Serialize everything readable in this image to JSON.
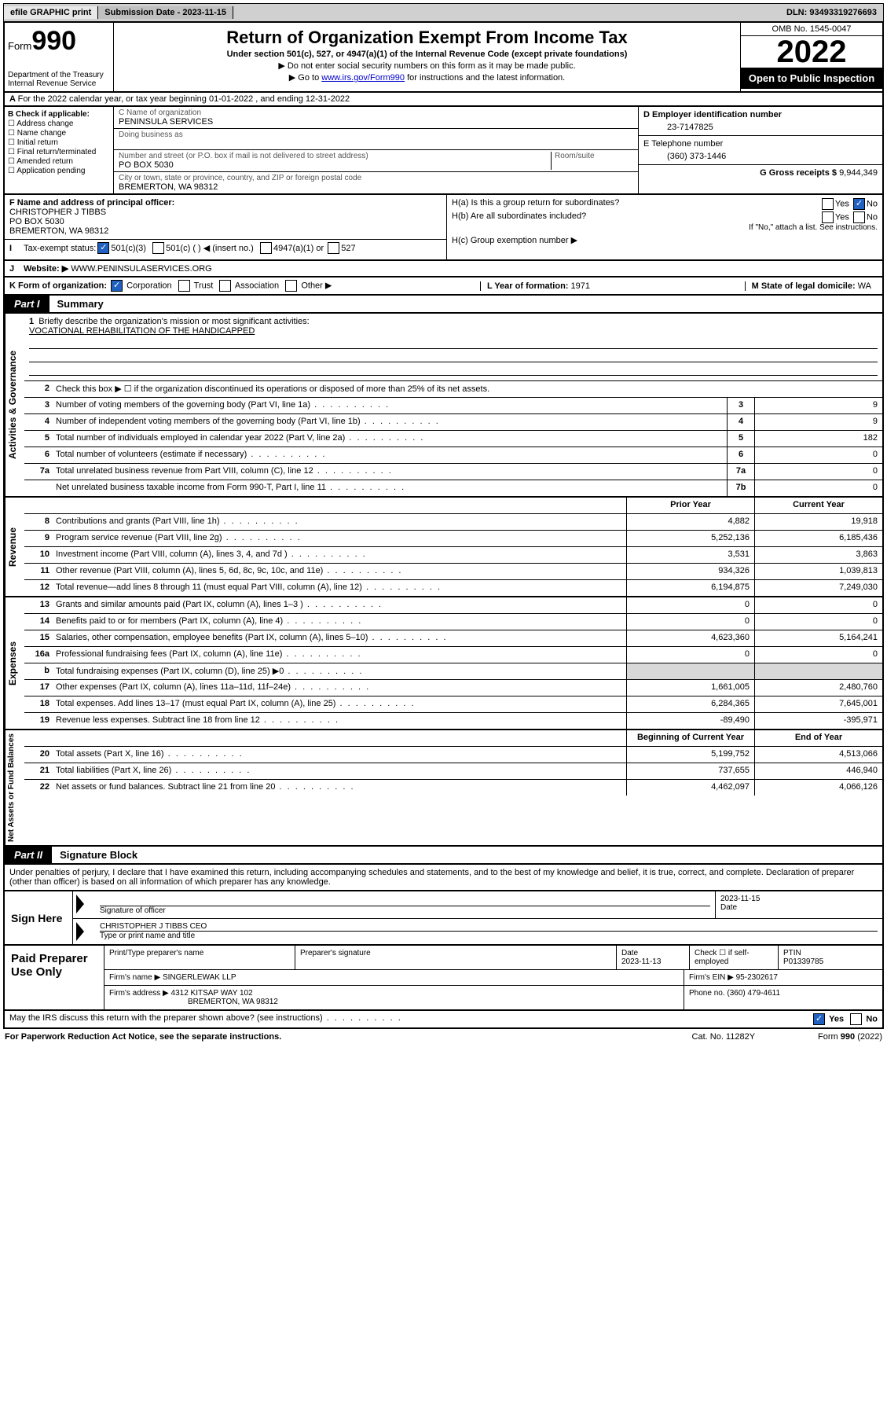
{
  "topbar": {
    "efile": "efile GRAPHIC print",
    "submission_label": "Submission Date - ",
    "submission_date": "2023-11-15",
    "dln_label": "DLN: ",
    "dln": "93493319276693"
  },
  "header": {
    "form_word": "Form",
    "form_num": "990",
    "dept": "Department of the Treasury",
    "irs": "Internal Revenue Service",
    "title": "Return of Organization Exempt From Income Tax",
    "sub": "Under section 501(c), 527, or 4947(a)(1) of the Internal Revenue Code (except private foundations)",
    "note1": "▶ Do not enter social security numbers on this form as it may be made public.",
    "note2_pre": "▶ Go to ",
    "note2_link": "www.irs.gov/Form990",
    "note2_post": " for instructions and the latest information.",
    "omb": "OMB No. 1545-0047",
    "year": "2022",
    "inspection": "Open to Public Inspection"
  },
  "line_a": "For the 2022 calendar year, or tax year beginning 01-01-2022     , and ending 12-31-2022",
  "col_b": {
    "header": "B Check if applicable:",
    "items": [
      "Address change",
      "Name change",
      "Initial return",
      "Final return/terminated",
      "Amended return",
      "Application pending"
    ]
  },
  "org": {
    "name_label": "C Name of organization",
    "name": "PENINSULA SERVICES",
    "dba_label": "Doing business as",
    "addr_label": "Number and street (or P.O. box if mail is not delivered to street address)",
    "room_label": "Room/suite",
    "addr": "PO BOX 5030",
    "city_label": "City or town, state or province, country, and ZIP or foreign postal code",
    "city": "BREMERTON, WA  98312"
  },
  "right_block": {
    "ein_label": "D Employer identification number",
    "ein": "23-7147825",
    "phone_label": "E Telephone number",
    "phone": "(360) 373-1446",
    "gross_label": "G Gross receipts $ ",
    "gross": "9,944,349"
  },
  "officer": {
    "label": "F  Name and address of principal officer:",
    "name": "CHRISTOPHER J TIBBS",
    "addr1": "PO BOX 5030",
    "addr2": "BREMERTON, WA  98312"
  },
  "h_block": {
    "ha": "H(a)  Is this a group return for subordinates?",
    "hb": "H(b)  Are all subordinates included?",
    "hb_note": "If \"No,\" attach a list. See instructions.",
    "hc": "H(c)  Group exemption number ▶",
    "yes": "Yes",
    "no": "No"
  },
  "tax_status": {
    "label": "Tax-exempt status:",
    "opt1": "501(c)(3)",
    "opt2": "501(c) (  ) ◀ (insert no.)",
    "opt3": "4947(a)(1) or",
    "opt4": "527"
  },
  "website": {
    "label": "Website: ▶",
    "val": "WWW.PENINSULASERVICES.ORG"
  },
  "line_k": {
    "label": "K Form of organization:",
    "opts": [
      "Corporation",
      "Trust",
      "Association",
      "Other ▶"
    ],
    "l_label": "L Year of formation: ",
    "l_val": "1971",
    "m_label": "M State of legal domicile: ",
    "m_val": "WA"
  },
  "part1": {
    "tag": "Part I",
    "title": "Summary"
  },
  "governance": {
    "vlabel": "Activities & Governance",
    "q1": "Briefly describe the organization's mission or most significant activities:",
    "mission": "VOCATIONAL REHABILITATION OF THE HANDICAPPED",
    "q2": "Check this box ▶ ☐  if the organization discontinued its operations or disposed of more than 25% of its net assets.",
    "rows": [
      {
        "n": "3",
        "t": "Number of voting members of the governing body (Part VI, line 1a)",
        "box": "3",
        "v": "9"
      },
      {
        "n": "4",
        "t": "Number of independent voting members of the governing body (Part VI, line 1b)",
        "box": "4",
        "v": "9"
      },
      {
        "n": "5",
        "t": "Total number of individuals employed in calendar year 2022 (Part V, line 2a)",
        "box": "5",
        "v": "182"
      },
      {
        "n": "6",
        "t": "Total number of volunteers (estimate if necessary)",
        "box": "6",
        "v": "0"
      },
      {
        "n": "7a",
        "t": "Total unrelated business revenue from Part VIII, column (C), line 12",
        "box": "7a",
        "v": "0"
      },
      {
        "n": "",
        "t": "Net unrelated business taxable income from Form 990-T, Part I, line 11",
        "box": "7b",
        "v": "0"
      }
    ]
  },
  "fin_header": {
    "prior": "Prior Year",
    "current": "Current Year",
    "begin": "Beginning of Current Year",
    "end": "End of Year"
  },
  "revenue": {
    "vlabel": "Revenue",
    "rows": [
      {
        "n": "8",
        "t": "Contributions and grants (Part VIII, line 1h)",
        "p": "4,882",
        "c": "19,918"
      },
      {
        "n": "9",
        "t": "Program service revenue (Part VIII, line 2g)",
        "p": "5,252,136",
        "c": "6,185,436"
      },
      {
        "n": "10",
        "t": "Investment income (Part VIII, column (A), lines 3, 4, and 7d )",
        "p": "3,531",
        "c": "3,863"
      },
      {
        "n": "11",
        "t": "Other revenue (Part VIII, column (A), lines 5, 6d, 8c, 9c, 10c, and 11e)",
        "p": "934,326",
        "c": "1,039,813"
      },
      {
        "n": "12",
        "t": "Total revenue—add lines 8 through 11 (must equal Part VIII, column (A), line 12)",
        "p": "6,194,875",
        "c": "7,249,030"
      }
    ]
  },
  "expenses": {
    "vlabel": "Expenses",
    "rows": [
      {
        "n": "13",
        "t": "Grants and similar amounts paid (Part IX, column (A), lines 1–3 )",
        "p": "0",
        "c": "0"
      },
      {
        "n": "14",
        "t": "Benefits paid to or for members (Part IX, column (A), line 4)",
        "p": "0",
        "c": "0"
      },
      {
        "n": "15",
        "t": "Salaries, other compensation, employee benefits (Part IX, column (A), lines 5–10)",
        "p": "4,623,360",
        "c": "5,164,241"
      },
      {
        "n": "16a",
        "t": "Professional fundraising fees (Part IX, column (A), line 11e)",
        "p": "0",
        "c": "0"
      },
      {
        "n": "b",
        "t": "Total fundraising expenses (Part IX, column (D), line 25) ▶0",
        "p": "",
        "c": "",
        "shade": true
      },
      {
        "n": "17",
        "t": "Other expenses (Part IX, column (A), lines 11a–11d, 11f–24e)",
        "p": "1,661,005",
        "c": "2,480,760"
      },
      {
        "n": "18",
        "t": "Total expenses. Add lines 13–17 (must equal Part IX, column (A), line 25)",
        "p": "6,284,365",
        "c": "7,645,001"
      },
      {
        "n": "19",
        "t": "Revenue less expenses. Subtract line 18 from line 12",
        "p": "-89,490",
        "c": "-395,971"
      }
    ]
  },
  "netassets": {
    "vlabel": "Net Assets or Fund Balances",
    "rows": [
      {
        "n": "20",
        "t": "Total assets (Part X, line 16)",
        "p": "5,199,752",
        "c": "4,513,066"
      },
      {
        "n": "21",
        "t": "Total liabilities (Part X, line 26)",
        "p": "737,655",
        "c": "446,940"
      },
      {
        "n": "22",
        "t": "Net assets or fund balances. Subtract line 21 from line 20",
        "p": "4,462,097",
        "c": "4,066,126"
      }
    ]
  },
  "part2": {
    "tag": "Part II",
    "title": "Signature Block"
  },
  "sig_text": "Under penalties of perjury, I declare that I have examined this return, including accompanying schedules and statements, and to the best of my knowledge and belief, it is true, correct, and complete. Declaration of preparer (other than officer) is based on all information of which preparer has any knowledge.",
  "sign": {
    "left": "Sign Here",
    "sig_label": "Signature of officer",
    "date_label": "Date",
    "date": "2023-11-15",
    "name": "CHRISTOPHER J TIBBS CEO",
    "name_label": "Type or print name and title"
  },
  "prep": {
    "left": "Paid Preparer Use Only",
    "h_name": "Print/Type preparer's name",
    "h_sig": "Preparer's signature",
    "h_date": "Date",
    "date": "2023-11-13",
    "check_label": "Check ☐ if self-employed",
    "ptin_label": "PTIN",
    "ptin": "P01339785",
    "firm_name_label": "Firm's name      ▶ ",
    "firm_name": "SINGERLEWAK LLP",
    "firm_ein_label": "Firm's EIN ▶ ",
    "firm_ein": "95-2302617",
    "firm_addr_label": "Firm's address ▶ ",
    "firm_addr1": "4312 KITSAP WAY 102",
    "firm_addr2": "BREMERTON, WA  98312",
    "phone_label": "Phone no. ",
    "phone": "(360) 479-4611"
  },
  "discuss": {
    "q": "May the IRS discuss this return with the preparer shown above? (see instructions)",
    "yes": "Yes",
    "no": "No"
  },
  "footer": {
    "left": "For Paperwork Reduction Act Notice, see the separate instructions.",
    "mid": "Cat. No. 11282Y",
    "right_pre": "Form ",
    "right_num": "990",
    "right_post": " (2022)"
  }
}
